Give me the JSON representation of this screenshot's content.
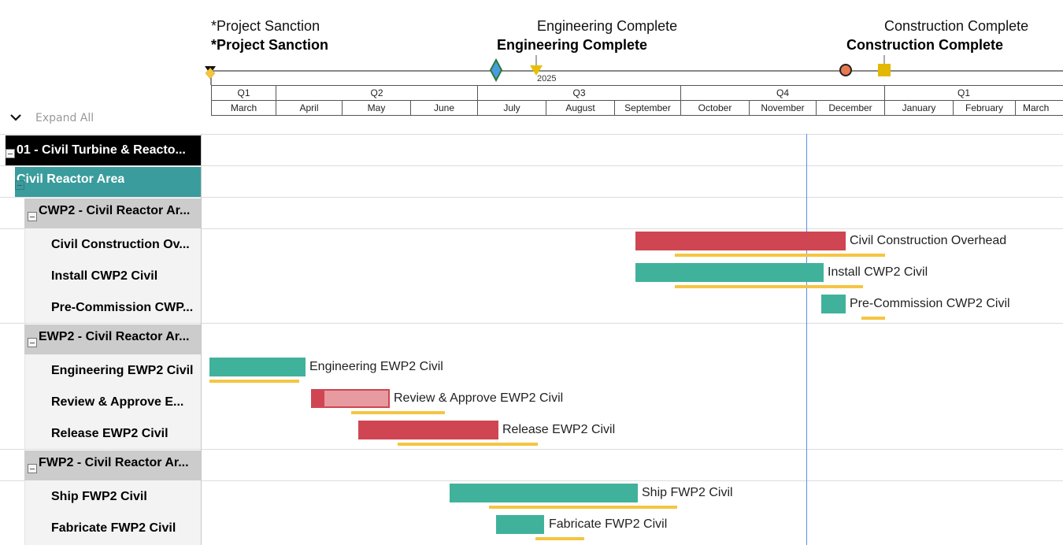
{
  "colors": {
    "red_bar": "#cf4652",
    "teal_bar": "#40b29b",
    "baseline": "#f5c542",
    "today_line": "#5b8fe8",
    "level0_bg": "#000000",
    "level1_bg": "#3a9c9c",
    "level2_bg": "#cccccc"
  },
  "milestones": {
    "project_sanction": {
      "label": "*Project Sanction",
      "label_bold": "*Project Sanction"
    },
    "engineering_complete": {
      "label": "Engineering Complete",
      "label_bold": "Engineering Complete"
    },
    "construction_complete": {
      "label": "Construction Complete",
      "label_bold": "Construction Complete"
    }
  },
  "timescale": {
    "year": "2025",
    "quarters": [
      "Q1",
      "Q2",
      "Q3",
      "Q4",
      "Q1"
    ],
    "months": [
      "March",
      "April",
      "May",
      "June",
      "July",
      "August",
      "September",
      "October",
      "November",
      "December",
      "January",
      "February",
      "March"
    ]
  },
  "toolbar": {
    "expand_all_label": "Expand All"
  },
  "rows": [
    {
      "label": "01 - Civil Turbine & Reacto..."
    },
    {
      "label": "Civil Reactor Area"
    },
    {
      "label": "CWP2 - Civil Reactor Ar..."
    },
    {
      "label": "Civil Construction Ov...",
      "bar_label": "Civil Construction Overhead"
    },
    {
      "label": "Install CWP2 Civil",
      "bar_label": "Install CWP2 Civil"
    },
    {
      "label": "Pre-Commission CWP...",
      "bar_label": "Pre-Commission CWP2 Civil"
    },
    {
      "label": "EWP2 - Civil Reactor Ar..."
    },
    {
      "label": "Engineering EWP2 Civil",
      "bar_label": "Engineering EWP2 Civil"
    },
    {
      "label": "Review & Approve E...",
      "bar_label": "Review & Approve EWP2 Civil"
    },
    {
      "label": "Release EWP2 Civil",
      "bar_label": "Release EWP2 Civil"
    },
    {
      "label": "FWP2 - Civil Reactor Ar..."
    },
    {
      "label": "Ship FWP2 Civil",
      "bar_label": "Ship FWP2 Civil"
    },
    {
      "label": "Fabricate FWP2 Civil",
      "bar_label": "Fabricate FWP2 Civil"
    }
  ]
}
